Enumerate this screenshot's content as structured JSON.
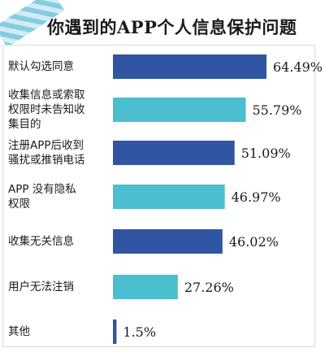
{
  "chart_data": {
    "type": "bar",
    "orientation": "horizontal",
    "title": "你遇到的APP个人信息保护问题",
    "categories": [
      "默认勾选同意",
      "收集信息或索取权限时未告知收集目的",
      "注册APP后收到骚扰或推销电话",
      "APP 没有隐私权限",
      "收集无关信息",
      "用户无法注销",
      "其他"
    ],
    "category_lines": [
      [
        "默认勾选同意"
      ],
      [
        "收集信息或索取",
        "权限时未告知收",
        "集目的"
      ],
      [
        "注册APP后收到",
        "骚扰或推销电话"
      ],
      [
        "APP 没有隐私",
        "权限"
      ],
      [
        "收集无关信息"
      ],
      [
        "用户无法注销"
      ],
      [
        "其他"
      ]
    ],
    "values": [
      64.49,
      55.79,
      51.09,
      46.97,
      46.02,
      27.26,
      1.5
    ],
    "value_labels": [
      "64.49%",
      "55.79%",
      "51.09%",
      "46.97%",
      "46.02%",
      "27.26%",
      "1.5%"
    ],
    "xlim": [
      0,
      70
    ],
    "grid": false,
    "legend": "none",
    "colors": {
      "dark_bar": "#2f55a3",
      "light_bar": "#4bbfcf",
      "pattern": [
        "dark",
        "light",
        "dark",
        "light",
        "dark",
        "light",
        "dark"
      ]
    }
  }
}
